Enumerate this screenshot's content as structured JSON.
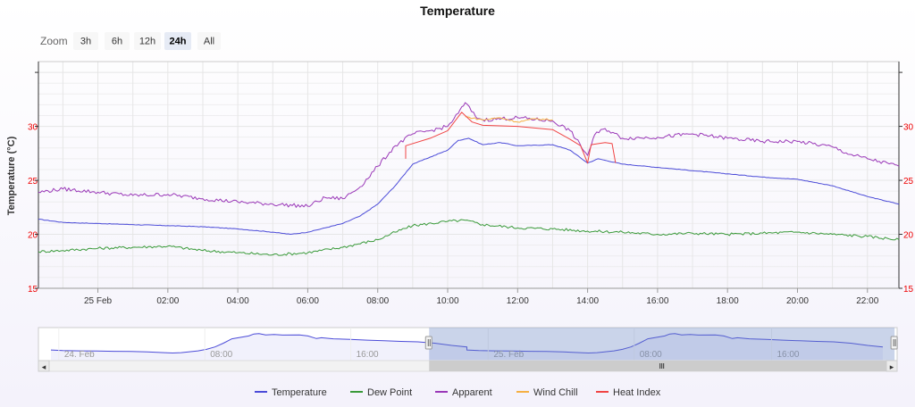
{
  "chart_data": {
    "type": "line",
    "title": "Temperature",
    "ylabel": "Temperature (°C)",
    "ylim": [
      15,
      36
    ],
    "yticks": [
      15,
      20,
      25,
      30
    ],
    "xlim": [
      -1.7,
      22.9
    ],
    "xticks": [
      {
        "x": 0,
        "label": "25 Feb"
      },
      {
        "x": 2,
        "label": "02:00"
      },
      {
        "x": 4,
        "label": "04:00"
      },
      {
        "x": 6,
        "label": "06:00"
      },
      {
        "x": 8,
        "label": "08:00"
      },
      {
        "x": 10,
        "label": "10:00"
      },
      {
        "x": 12,
        "label": "12:00"
      },
      {
        "x": 14,
        "label": "14:00"
      },
      {
        "x": 16,
        "label": "16:00"
      },
      {
        "x": 18,
        "label": "18:00"
      },
      {
        "x": 20,
        "label": "20:00"
      },
      {
        "x": 22,
        "label": "22:00"
      }
    ],
    "series": [
      {
        "name": "Temperature",
        "color": "#4b4bd8",
        "points": [
          [
            -1.7,
            21.4
          ],
          [
            -1,
            21.1
          ],
          [
            0,
            21.0
          ],
          [
            1,
            20.9
          ],
          [
            2,
            20.8
          ],
          [
            3,
            20.7
          ],
          [
            4,
            20.5
          ],
          [
            5,
            20.2
          ],
          [
            5.5,
            20.0
          ],
          [
            6,
            20.2
          ],
          [
            7,
            21.0
          ],
          [
            7.5,
            21.7
          ],
          [
            8,
            22.8
          ],
          [
            8.5,
            24.5
          ],
          [
            9,
            26.5
          ],
          [
            10,
            27.8
          ],
          [
            10.3,
            28.7
          ],
          [
            10.6,
            28.9
          ],
          [
            11,
            28.3
          ],
          [
            11.5,
            28.5
          ],
          [
            12,
            28.2
          ],
          [
            13,
            28.3
          ],
          [
            13.5,
            27.8
          ],
          [
            14,
            26.6
          ],
          [
            14.3,
            27.0
          ],
          [
            15,
            26.5
          ],
          [
            16,
            26.2
          ],
          [
            17,
            25.9
          ],
          [
            18,
            25.6
          ],
          [
            19,
            25.3
          ],
          [
            20,
            25.1
          ],
          [
            21,
            24.5
          ],
          [
            22,
            23.5
          ],
          [
            22.9,
            22.8
          ]
        ]
      },
      {
        "name": "Dew Point",
        "color": "#3a9a3a",
        "points": [
          [
            -1.7,
            18.4
          ],
          [
            -1,
            18.5
          ],
          [
            0,
            18.7
          ],
          [
            1,
            18.8
          ],
          [
            2,
            18.9
          ],
          [
            3,
            18.5
          ],
          [
            4,
            18.3
          ],
          [
            5,
            18.1
          ],
          [
            6,
            18.3
          ],
          [
            7,
            18.8
          ],
          [
            8,
            19.5
          ],
          [
            8.5,
            20.2
          ],
          [
            9,
            20.8
          ],
          [
            10,
            21.2
          ],
          [
            10.5,
            21.3
          ],
          [
            11,
            20.9
          ],
          [
            12,
            20.6
          ],
          [
            13,
            20.5
          ],
          [
            14,
            20.3
          ],
          [
            15,
            20.2
          ],
          [
            16,
            20.0
          ],
          [
            17,
            20.1
          ],
          [
            18,
            20.0
          ],
          [
            19,
            20.1
          ],
          [
            20,
            20.2
          ],
          [
            21,
            20.0
          ],
          [
            22,
            19.8
          ],
          [
            22.9,
            19.5
          ]
        ]
      },
      {
        "name": "Apparent",
        "color": "#9a38b8",
        "points": [
          [
            -1.7,
            23.9
          ],
          [
            -1,
            24.2
          ],
          [
            0,
            23.9
          ],
          [
            1,
            23.6
          ],
          [
            2,
            23.7
          ],
          [
            3,
            23.3
          ],
          [
            4,
            23.0
          ],
          [
            5,
            22.8
          ],
          [
            6,
            22.6
          ],
          [
            6.5,
            23.4
          ],
          [
            7,
            23.3
          ],
          [
            7.5,
            24.4
          ],
          [
            8,
            26.3
          ],
          [
            8.5,
            28.2
          ],
          [
            9,
            29.3
          ],
          [
            9.5,
            29.6
          ],
          [
            10,
            30.0
          ],
          [
            10.3,
            31.2
          ],
          [
            10.5,
            32.2
          ],
          [
            10.8,
            30.9
          ],
          [
            11,
            30.6
          ],
          [
            12,
            30.8
          ],
          [
            13,
            30.5
          ],
          [
            13.5,
            29.6
          ],
          [
            14,
            27.3
          ],
          [
            14.2,
            29.2
          ],
          [
            14.5,
            29.8
          ],
          [
            15,
            28.9
          ],
          [
            16,
            29.0
          ],
          [
            17,
            29.3
          ],
          [
            18,
            28.9
          ],
          [
            19,
            28.6
          ],
          [
            20,
            28.6
          ],
          [
            21,
            28.1
          ],
          [
            21.5,
            27.4
          ],
          [
            22,
            27.0
          ],
          [
            22.9,
            26.3
          ]
        ]
      },
      {
        "name": "Wind Chill",
        "color": "#f5b043",
        "points": [
          [
            10.5,
            30.9
          ],
          [
            11,
            30.6
          ],
          [
            11.5,
            30.8
          ],
          [
            12,
            30.4
          ],
          [
            12.5,
            30.7
          ],
          [
            13,
            30.6
          ]
        ]
      },
      {
        "name": "Heat Index",
        "color": "#f04444",
        "points": [
          [
            8.8,
            27.0
          ],
          [
            8.8,
            28.2
          ],
          [
            9.5,
            28.9
          ],
          [
            10,
            29.6
          ],
          [
            10.4,
            31.3
          ],
          [
            10.7,
            30.4
          ],
          [
            11,
            30.1
          ],
          [
            12,
            30.0
          ],
          [
            13,
            29.7
          ],
          [
            13.5,
            28.8
          ],
          [
            13.8,
            28.2
          ],
          [
            14,
            26.6
          ],
          [
            14.1,
            28.3
          ],
          [
            14.5,
            28.5
          ],
          [
            14.7,
            28.4
          ],
          [
            14.8,
            26.6
          ]
        ]
      }
    ],
    "navigator": {
      "labels": [
        "24. Feb",
        "08:00",
        "16:00",
        "25. Feb",
        "08:00",
        "16:00"
      ],
      "selection": [
        0.455,
        0.997
      ]
    },
    "legend_placement": "bottom-center",
    "grid": true
  },
  "zoom": {
    "label": "Zoom",
    "buttons": [
      "3h",
      "6h",
      "12h",
      "24h",
      "All"
    ],
    "active": "24h"
  }
}
